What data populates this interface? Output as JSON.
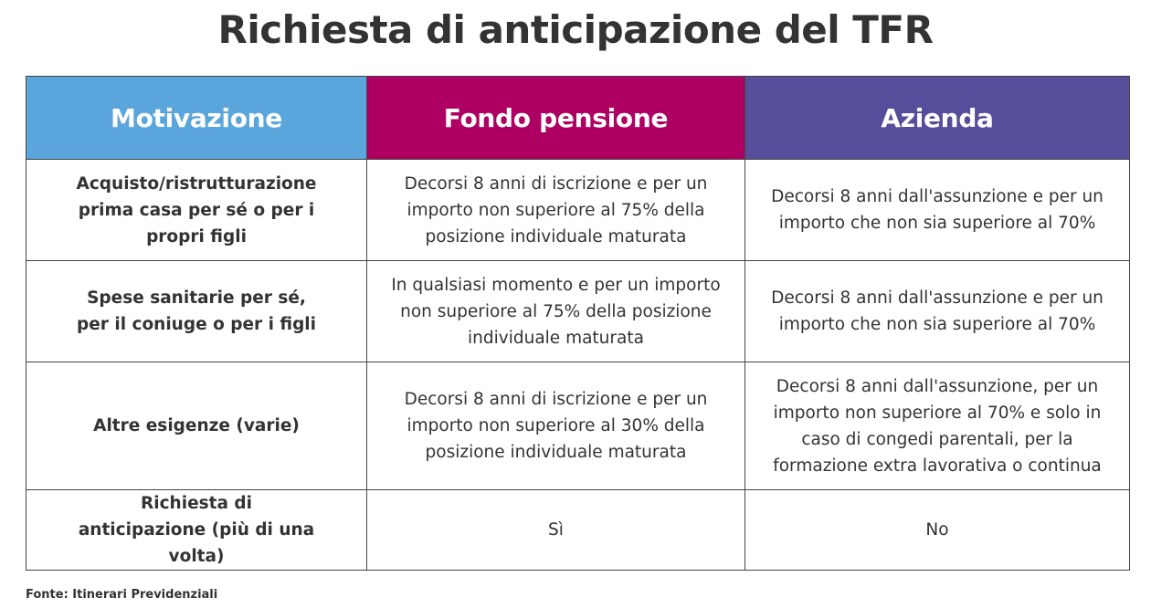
{
  "chart_data": {
    "type": "table",
    "title": "Richiesta di anticipazione del TFR",
    "columns": [
      "Motivazione",
      "Fondo pensione",
      "Azienda"
    ],
    "header_colors": [
      "#5aa6dc",
      "#ae0062",
      "#574e9b"
    ],
    "rows": [
      {
        "motivazione": "Acquisto/ristrutturazione prima casa per sé o per i propri figli",
        "fondo_pensione": "Decorsi 8 anni di iscrizione e per un importo non superiore al 75% della posizione individuale maturata",
        "azienda": "Decorsi 8 anni dall'assunzione e per un importo che non sia superiore al 70%"
      },
      {
        "motivazione": "Spese sanitarie per sé, per il coniuge o per i figli",
        "fondo_pensione": "In qualsiasi momento e per un importo non superiore al 75% della posizione individuale maturata",
        "azienda": "Decorsi 8 anni dall'assunzione e per un importo che non sia superiore al 70%"
      },
      {
        "motivazione": "Altre esigenze (varie)",
        "fondo_pensione": "Decorsi 8 anni di iscrizione e per un importo non superiore al 30% della posizione individuale maturata",
        "azienda": "Decorsi 8 anni dall'assunzione, per un importo non superiore al 70% e solo in caso di congedi parentali, per la formazione extra lavorativa o continua"
      },
      {
        "motivazione": "Richiesta di anticipazione (più di una volta)",
        "fondo_pensione": "Sì",
        "azienda": "No"
      }
    ],
    "source": "Fonte: Itinerari Previdenziali"
  }
}
